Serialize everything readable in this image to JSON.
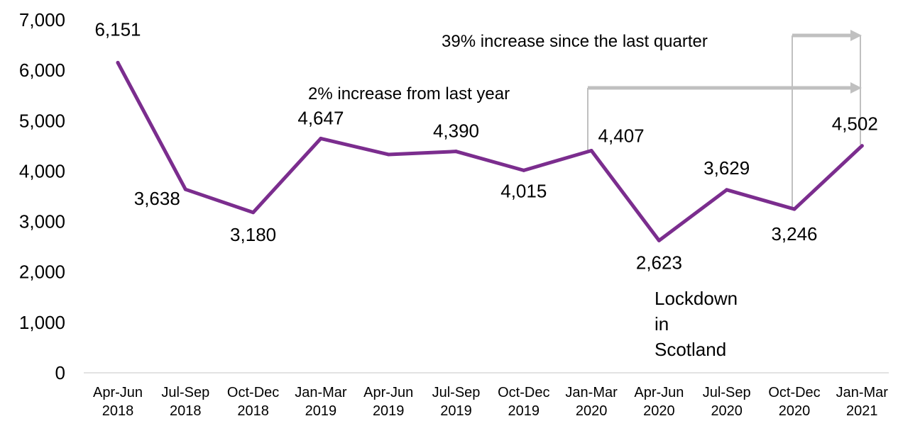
{
  "chart_data": {
    "type": "line",
    "title": "",
    "xlabel": "",
    "ylabel": "",
    "ylim": [
      0,
      7000
    ],
    "yticks": [
      "0",
      "1,000",
      "2,000",
      "3,000",
      "4,000",
      "5,000",
      "6,000",
      "7,000"
    ],
    "grid": false,
    "line_color": "#7b2d8e",
    "categories": [
      [
        "Apr-Jun",
        "2018"
      ],
      [
        "Jul-Sep",
        "2018"
      ],
      [
        "Oct-Dec",
        "2018"
      ],
      [
        "Jan-Mar",
        "2019"
      ],
      [
        "Apr-Jun",
        "2019"
      ],
      [
        "Jul-Sep",
        "2019"
      ],
      [
        "Oct-Dec",
        "2019"
      ],
      [
        "Jan-Mar",
        "2020"
      ],
      [
        "Apr-Jun",
        "2020"
      ],
      [
        "Jul-Sep",
        "2020"
      ],
      [
        "Oct-Dec",
        "2020"
      ],
      [
        "Jan-Mar",
        "2021"
      ]
    ],
    "values": [
      6151,
      3638,
      3180,
      4647,
      4330,
      4390,
      4015,
      4407,
      2623,
      3629,
      3246,
      4502
    ],
    "data_labels": [
      "6,151",
      "3,638",
      "3,180",
      "4,647",
      "",
      "4,390",
      "4,015",
      "4,407",
      "2,623",
      "3,629",
      "3,246",
      "4,502"
    ],
    "annotations": {
      "quarter_increase": "39% increase since the last quarter",
      "year_increase": "2% increase from last year",
      "lockdown": [
        "Lockdown",
        "in",
        "Scotland"
      ]
    },
    "annotation_color": "#c0c0c0"
  }
}
